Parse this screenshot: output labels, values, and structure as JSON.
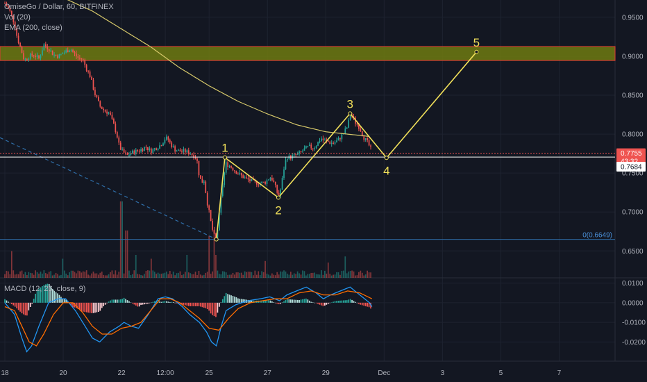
{
  "legend": {
    "symbol": "OmiseGo / Dollar, 60, BITFINEX",
    "volume": "Vol (20)",
    "ema": "EMA (200, close)",
    "macd": "MACD (12, 26, close, 9)"
  },
  "colors": {
    "background": "#131722",
    "up": "#26a69a",
    "down": "#ef5350",
    "ema": "#d6c86a",
    "wave": "#f1e05a",
    "zone": "#6f7a10",
    "zone_border": "#e53935",
    "fib": "#2f6ea8",
    "macd": "#2196f3",
    "signal": "#ff6d00",
    "price_tag": "#ef5350"
  },
  "chart_data": [
    {
      "type": "candlestick",
      "title": "OmiseGo / Dollar, 60, BITFINEX",
      "x_ticks": [
        {
          "label": "18",
          "x": 0
        },
        {
          "label": "20",
          "x": 48
        },
        {
          "label": "22",
          "x": 96
        },
        {
          "label": "12:00",
          "x": 132
        },
        {
          "label": "25",
          "x": 168
        },
        {
          "label": "27",
          "x": 216
        },
        {
          "label": "29",
          "x": 264
        },
        {
          "label": "Dec",
          "x": 312
        },
        {
          "label": "3",
          "x": 360
        },
        {
          "label": "5",
          "x": 408
        },
        {
          "label": "7",
          "x": 456
        }
      ],
      "x_range": [
        -4,
        502
      ],
      "y_ticks": [
        0.95,
        0.9,
        0.85,
        0.8,
        0.75,
        0.7,
        0.65
      ],
      "y_tick_labels": [
        "0.9500",
        "0.9000",
        "0.8500",
        "0.8000",
        "0.7500",
        "0.7000",
        "0.6500"
      ],
      "ylim": [
        0.6155,
        0.9722
      ],
      "close_path": [
        [
          0,
          0.968
        ],
        [
          4,
          0.958
        ],
        [
          8,
          0.942
        ],
        [
          10,
          0.925
        ],
        [
          14,
          0.905
        ],
        [
          16,
          0.895
        ],
        [
          20,
          0.9
        ],
        [
          24,
          0.902
        ],
        [
          28,
          0.897
        ],
        [
          30,
          0.905
        ],
        [
          32,
          0.915
        ],
        [
          36,
          0.91
        ],
        [
          40,
          0.902
        ],
        [
          44,
          0.9
        ],
        [
          50,
          0.906
        ],
        [
          54,
          0.91
        ],
        [
          56,
          0.905
        ],
        [
          60,
          0.898
        ],
        [
          64,
          0.896
        ],
        [
          66,
          0.888
        ],
        [
          70,
          0.875
        ],
        [
          74,
          0.852
        ],
        [
          78,
          0.836
        ],
        [
          82,
          0.83
        ],
        [
          86,
          0.827
        ],
        [
          88,
          0.818
        ],
        [
          90,
          0.81
        ],
        [
          92,
          0.8
        ],
        [
          94,
          0.785
        ],
        [
          96,
          0.779
        ],
        [
          98,
          0.776
        ],
        [
          100,
          0.772
        ],
        [
          104,
          0.776
        ],
        [
          108,
          0.778
        ],
        [
          112,
          0.78
        ],
        [
          116,
          0.784
        ],
        [
          120,
          0.778
        ],
        [
          124,
          0.782
        ],
        [
          128,
          0.786
        ],
        [
          130,
          0.79
        ],
        [
          132,
          0.795
        ],
        [
          134,
          0.794
        ],
        [
          136,
          0.788
        ],
        [
          140,
          0.78
        ],
        [
          144,
          0.778
        ],
        [
          148,
          0.778
        ],
        [
          152,
          0.776
        ],
        [
          156,
          0.772
        ],
        [
          158,
          0.767
        ],
        [
          160,
          0.745
        ],
        [
          162,
          0.738
        ],
        [
          164,
          0.741
        ],
        [
          166,
          0.716
        ],
        [
          168,
          0.7
        ],
        [
          170,
          0.682
        ],
        [
          172,
          0.67
        ],
        [
          174,
          0.665
        ],
        [
          176,
          0.69
        ],
        [
          178,
          0.722
        ],
        [
          180,
          0.745
        ],
        [
          182,
          0.762
        ],
        [
          186,
          0.758
        ],
        [
          190,
          0.752
        ],
        [
          194,
          0.747
        ],
        [
          198,
          0.743
        ],
        [
          202,
          0.74
        ],
        [
          206,
          0.738
        ],
        [
          210,
          0.737
        ],
        [
          214,
          0.738
        ],
        [
          216,
          0.741
        ],
        [
          218,
          0.745
        ],
        [
          220,
          0.742
        ],
        [
          222,
          0.735
        ],
        [
          224,
          0.725
        ],
        [
          226,
          0.721
        ],
        [
          228,
          0.74
        ],
        [
          230,
          0.76
        ],
        [
          232,
          0.771
        ],
        [
          234,
          0.77
        ],
        [
          238,
          0.772
        ],
        [
          242,
          0.775
        ],
        [
          246,
          0.78
        ],
        [
          250,
          0.784
        ],
        [
          254,
          0.782
        ],
        [
          258,
          0.79
        ],
        [
          260,
          0.795
        ],
        [
          262,
          0.792
        ],
        [
          266,
          0.79
        ],
        [
          270,
          0.788
        ],
        [
          274,
          0.792
        ],
        [
          276,
          0.796
        ],
        [
          278,
          0.8
        ],
        [
          282,
          0.81
        ],
        [
          284,
          0.825
        ],
        [
          286,
          0.822
        ],
        [
          288,
          0.816
        ],
        [
          290,
          0.812
        ],
        [
          292,
          0.808
        ],
        [
          294,
          0.8
        ],
        [
          296,
          0.794
        ],
        [
          298,
          0.79
        ],
        [
          300,
          0.784
        ],
        [
          302,
          0.778
        ]
      ],
      "ema_path": [
        [
          0,
          1.005
        ],
        [
          24,
          0.992
        ],
        [
          48,
          0.975
        ],
        [
          72,
          0.958
        ],
        [
          96,
          0.935
        ],
        [
          120,
          0.912
        ],
        [
          144,
          0.885
        ],
        [
          168,
          0.862
        ],
        [
          192,
          0.842
        ],
        [
          216,
          0.826
        ],
        [
          240,
          0.812
        ],
        [
          264,
          0.803
        ],
        [
          288,
          0.799
        ],
        [
          300,
          0.797
        ]
      ],
      "supply_zone": [
        0.8945,
        0.9125
      ],
      "horizontal_lines": [
        {
          "price": 0.7755,
          "style": "dotted",
          "color": "#ef5350"
        },
        {
          "price": 0.7705,
          "style": "solid",
          "color": "#ffffff"
        }
      ],
      "fib_line": {
        "price": 0.6649,
        "label": "0(0.6649)"
      },
      "trend_line": [
        [
          -4,
          0.7955
        ],
        [
          174,
          0.665
        ]
      ],
      "elliott_wave": [
        {
          "label": "",
          "x": 174,
          "price": 0.6649
        },
        {
          "label": "1",
          "x": 181,
          "price": 0.77
        },
        {
          "label": "2",
          "x": 225,
          "price": 0.7185
        },
        {
          "label": "3",
          "x": 284,
          "price": 0.8265
        },
        {
          "label": "4",
          "x": 314,
          "price": 0.7695
        },
        {
          "label": "5",
          "x": 388,
          "price": 0.9055
        }
      ],
      "price_tags": [
        {
          "label": "0.7755",
          "price": 0.7755,
          "style": "filled"
        },
        {
          "label": "43:32",
          "price": 0.7655,
          "style": "filled"
        },
        {
          "label": "0.7684",
          "price": 0.7582,
          "style": "white"
        }
      ]
    },
    {
      "type": "bar",
      "title": "Vol (20)",
      "note": "volume bars share the price x axis",
      "volume_spikes": [
        [
          6,
          0.35
        ],
        [
          48,
          0.25
        ],
        [
          96,
          1.0
        ],
        [
          100,
          0.62
        ],
        [
          108,
          0.3
        ],
        [
          120,
          0.25
        ],
        [
          150,
          0.3
        ],
        [
          168,
          0.55
        ],
        [
          172,
          0.62
        ],
        [
          174,
          0.3
        ],
        [
          214,
          0.22
        ],
        [
          266,
          0.2
        ],
        [
          280,
          0.28
        ]
      ]
    },
    {
      "type": "line",
      "title": "MACD (12, 26, close, 9)",
      "ylim": [
        -0.0298,
        0.0127
      ],
      "y_ticks": [
        0.01,
        0.0,
        -0.01,
        -0.02
      ],
      "y_tick_labels": [
        "0.0100",
        "0.0000",
        "-0.0100",
        "-0.0200"
      ],
      "series": [
        {
          "name": "",
          "role": "macd",
          "color": "#2196f3",
          "points": [
            [
              0,
              0.0
            ],
            [
              8,
              -0.006
            ],
            [
              14,
              -0.018
            ],
            [
              18,
              -0.025
            ],
            [
              22,
              -0.022
            ],
            [
              28,
              -0.012
            ],
            [
              36,
              0.0
            ],
            [
              44,
              0.002
            ],
            [
              50,
              0.002
            ],
            [
              58,
              -0.004
            ],
            [
              66,
              -0.012
            ],
            [
              72,
              -0.018
            ],
            [
              78,
              -0.02
            ],
            [
              86,
              -0.015
            ],
            [
              94,
              -0.012
            ],
            [
              98,
              -0.01
            ],
            [
              104,
              -0.012
            ],
            [
              110,
              -0.013
            ],
            [
              118,
              -0.006
            ],
            [
              126,
              0.002
            ],
            [
              132,
              0.003
            ],
            [
              138,
              0.002
            ],
            [
              146,
              -0.002
            ],
            [
              152,
              -0.006
            ],
            [
              160,
              -0.01
            ],
            [
              166,
              -0.015
            ],
            [
              170,
              -0.02
            ],
            [
              174,
              -0.022
            ],
            [
              178,
              -0.012
            ],
            [
              182,
              -0.004
            ],
            [
              190,
              -0.001
            ],
            [
              200,
              0.001
            ],
            [
              210,
              0.002
            ],
            [
              218,
              0.003
            ],
            [
              226,
              0.001
            ],
            [
              232,
              0.004
            ],
            [
              240,
              0.006
            ],
            [
              248,
              0.008
            ],
            [
              256,
              0.005
            ],
            [
              262,
              0.002
            ],
            [
              268,
              0.004
            ],
            [
              276,
              0.006
            ],
            [
              284,
              0.008
            ],
            [
              292,
              0.004
            ],
            [
              300,
              0.0
            ],
            [
              302,
              -0.002
            ]
          ]
        },
        {
          "name": "",
          "role": "signal",
          "color": "#ff6d00",
          "points": [
            [
              0,
              -0.002
            ],
            [
              8,
              -0.004
            ],
            [
              14,
              -0.012
            ],
            [
              20,
              -0.02
            ],
            [
              26,
              -0.022
            ],
            [
              32,
              -0.016
            ],
            [
              40,
              -0.006
            ],
            [
              48,
              0.0
            ],
            [
              56,
              0.0
            ],
            [
              64,
              -0.005
            ],
            [
              72,
              -0.012
            ],
            [
              80,
              -0.016
            ],
            [
              88,
              -0.016
            ],
            [
              96,
              -0.013
            ],
            [
              104,
              -0.012
            ],
            [
              112,
              -0.01
            ],
            [
              120,
              -0.004
            ],
            [
              128,
              0.002
            ],
            [
              136,
              0.002
            ],
            [
              144,
              0.0
            ],
            [
              152,
              -0.004
            ],
            [
              160,
              -0.008
            ],
            [
              168,
              -0.013
            ],
            [
              176,
              -0.014
            ],
            [
              184,
              -0.008
            ],
            [
              192,
              -0.003
            ],
            [
              202,
              0.0
            ],
            [
              212,
              0.001
            ],
            [
              222,
              0.002
            ],
            [
              232,
              0.002
            ],
            [
              242,
              0.005
            ],
            [
              252,
              0.006
            ],
            [
              262,
              0.004
            ],
            [
              272,
              0.004
            ],
            [
              282,
              0.006
            ],
            [
              292,
              0.005
            ],
            [
              302,
              0.002
            ]
          ]
        }
      ]
    }
  ]
}
